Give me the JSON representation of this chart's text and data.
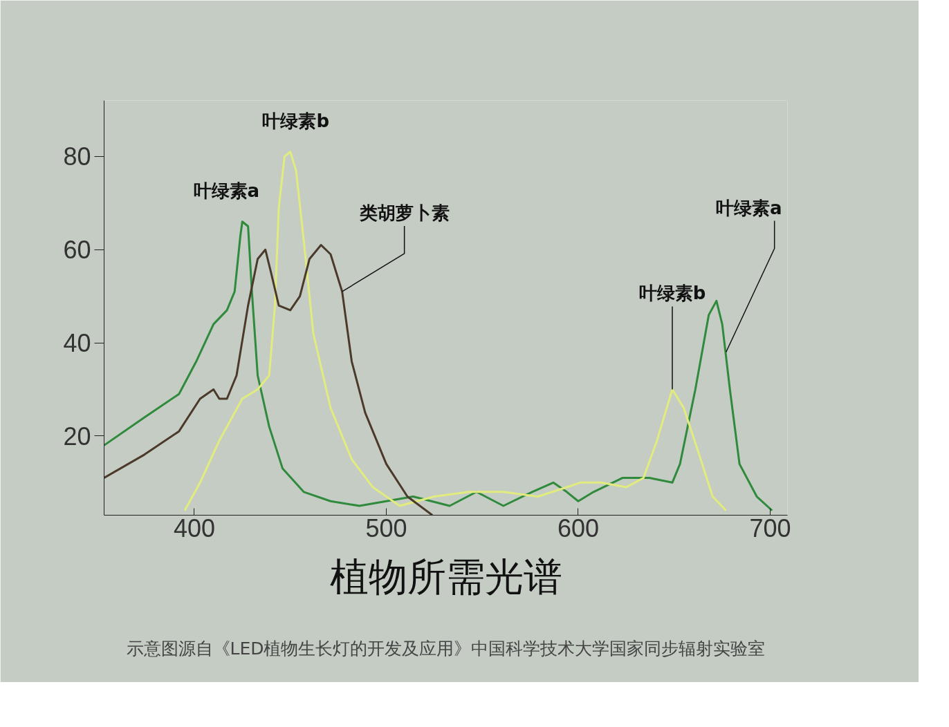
{
  "chart_data": {
    "type": "line",
    "title": "植物所需光谱",
    "xlim": [
      353,
      709
    ],
    "ylim": [
      3,
      92
    ],
    "xticks": [
      400,
      500,
      600,
      700
    ],
    "yticks": [
      20,
      40,
      60,
      80
    ],
    "grid": false,
    "line_style": "solid",
    "marker": "none",
    "series": [
      {
        "color": "#2f8a3c",
        "x": [
          353,
          374,
          392,
          401,
          410,
          417,
          421,
          424,
          425,
          428,
          430,
          433,
          439,
          446,
          457,
          471,
          486,
          500,
          514,
          533,
          547,
          561,
          576,
          587,
          594,
          600,
          608,
          623,
          637,
          649,
          653,
          661,
          668,
          672,
          675,
          679,
          684,
          693,
          701
        ],
        "values": [
          18,
          24,
          29,
          36,
          44,
          47,
          51,
          63,
          66,
          65,
          51,
          33,
          22,
          13,
          8,
          6,
          5,
          6,
          7,
          5,
          8,
          5,
          8,
          10,
          8,
          6,
          8,
          11,
          11,
          10,
          14,
          30,
          46,
          49,
          44,
          30,
          14,
          7,
          4
        ]
      },
      {
        "color": "#e2ec7e",
        "x": [
          395,
          403,
          413,
          425,
          433,
          439,
          442,
          444,
          447,
          450,
          453,
          457,
          462,
          471,
          482,
          493,
          507,
          525,
          543,
          561,
          579,
          594,
          601,
          612,
          625,
          634,
          641,
          649,
          655,
          663,
          670,
          677
        ],
        "values": [
          4,
          10,
          19,
          28,
          30,
          33,
          48,
          69,
          80,
          81,
          77,
          62,
          42,
          26,
          15,
          9,
          5,
          7,
          8,
          8,
          7,
          9,
          10,
          10,
          9,
          11,
          19,
          30,
          26,
          16,
          7,
          4
        ]
      },
      {
        "color": "#4b3a2a",
        "x": [
          353,
          374,
          392,
          403,
          410,
          413,
          417,
          422,
          428,
          433,
          437,
          440,
          444,
          450,
          455,
          460,
          466,
          471,
          477,
          482,
          489,
          500,
          511,
          524
        ],
        "values": [
          11,
          16,
          21,
          28,
          30,
          28,
          28,
          33,
          48,
          58,
          60,
          55,
          48,
          47,
          50,
          58,
          61,
          59,
          51,
          36,
          25,
          14,
          7,
          3
        ]
      }
    ],
    "annotations": [
      {
        "text": "叶绿素a",
        "x": 425,
        "y": 66
      },
      {
        "text": "叶绿素b",
        "x": 450,
        "y": 81
      },
      {
        "text": "类胡萝卜素",
        "x": 477,
        "y": 51
      },
      {
        "text": "叶绿素b",
        "x": 649,
        "y": 30
      },
      {
        "text": "叶绿素a",
        "x": 677,
        "y": 38
      },
      "示意图源自《LED植物生长灯的开发及应用》中国科学技术大学国家同步辐射实验室"
    ]
  }
}
